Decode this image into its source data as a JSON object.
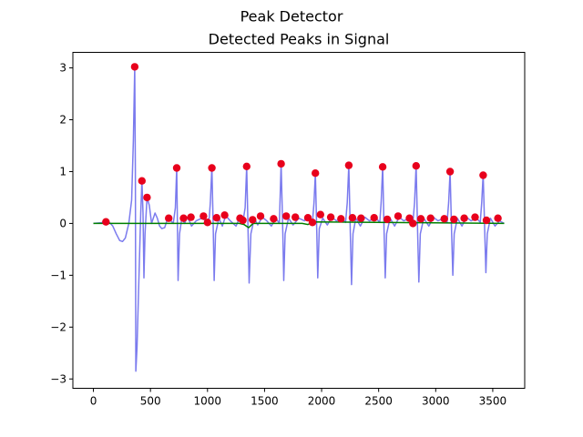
{
  "chart_data": {
    "type": "line",
    "suptitle": "Peak Detector",
    "title": "Detected Peaks in Signal",
    "xlabel": "",
    "ylabel": "",
    "xlim": [
      -180,
      3780
    ],
    "ylim": [
      -3.18,
      3.3
    ],
    "xticks": [
      0,
      500,
      1000,
      1500,
      2000,
      2500,
      3000,
      3500
    ],
    "yticks": [
      -3,
      -2,
      -1,
      0,
      1,
      2,
      3
    ],
    "grid": false,
    "colors": {
      "signal": "#7b7bee",
      "baseline": "#008000",
      "peaks": "#e8001c"
    },
    "signal": [
      [
        0,
        0
      ],
      [
        60,
        0.01
      ],
      [
        100,
        0.03
      ],
      [
        140,
        0.02
      ],
      [
        170,
        -0.05
      ],
      [
        200,
        -0.2
      ],
      [
        230,
        -0.33
      ],
      [
        255,
        -0.35
      ],
      [
        280,
        -0.28
      ],
      [
        310,
        0.0
      ],
      [
        335,
        0.45
      ],
      [
        350,
        1.6
      ],
      [
        362,
        3.02
      ],
      [
        368,
        1.0
      ],
      [
        372,
        -2.85
      ],
      [
        382,
        -2.4
      ],
      [
        400,
        -1.0
      ],
      [
        415,
        0.2
      ],
      [
        425,
        0.82
      ],
      [
        435,
        0.2
      ],
      [
        443,
        -1.05
      ],
      [
        452,
        -0.2
      ],
      [
        470,
        0.5
      ],
      [
        490,
        0.35
      ],
      [
        510,
        0.0
      ],
      [
        540,
        0.2
      ],
      [
        560,
        0.1
      ],
      [
        580,
        -0.05
      ],
      [
        600,
        -0.1
      ],
      [
        625,
        -0.08
      ],
      [
        650,
        0.1
      ],
      [
        680,
        0.05
      ],
      [
        700,
        0.0
      ],
      [
        718,
        0.3
      ],
      [
        730,
        1.08
      ],
      [
        742,
        -1.1
      ],
      [
        755,
        -0.2
      ],
      [
        775,
        0.1
      ],
      [
        800,
        0.0
      ],
      [
        820,
        0.12
      ],
      [
        840,
        0.05
      ],
      [
        860,
        -0.05
      ],
      [
        900,
        0.05
      ],
      [
        950,
        0.1
      ],
      [
        990,
        0.05
      ],
      [
        1015,
        0.1
      ],
      [
        1025,
        0.4
      ],
      [
        1038,
        1.08
      ],
      [
        1050,
        -0.1
      ],
      [
        1058,
        -1.1
      ],
      [
        1070,
        -0.2
      ],
      [
        1100,
        0.1
      ],
      [
        1130,
        -0.05
      ],
      [
        1160,
        0.15
      ],
      [
        1200,
        0.05
      ],
      [
        1250,
        -0.05
      ],
      [
        1280,
        0.1
      ],
      [
        1310,
        0.02
      ],
      [
        1330,
        0.3
      ],
      [
        1343,
        1.1
      ],
      [
        1357,
        -0.3
      ],
      [
        1365,
        -1.15
      ],
      [
        1380,
        -0.2
      ],
      [
        1410,
        0.1
      ],
      [
        1440,
        -0.03
      ],
      [
        1480,
        0.12
      ],
      [
        1520,
        0.05
      ],
      [
        1560,
        -0.05
      ],
      [
        1600,
        0.1
      ],
      [
        1630,
        0.0
      ],
      [
        1645,
        1.15
      ],
      [
        1660,
        -0.2
      ],
      [
        1668,
        -1.1
      ],
      [
        1680,
        -0.2
      ],
      [
        1710,
        0.1
      ],
      [
        1750,
        -0.03
      ],
      [
        1800,
        0.1
      ],
      [
        1850,
        0.05
      ],
      [
        1890,
        0.12
      ],
      [
        1920,
        0.02
      ],
      [
        1933,
        0.4
      ],
      [
        1945,
        0.97
      ],
      [
        1958,
        -0.2
      ],
      [
        1966,
        -1.05
      ],
      [
        1980,
        -0.1
      ],
      [
        2010,
        0.1
      ],
      [
        2050,
        -0.03
      ],
      [
        2090,
        0.12
      ],
      [
        2130,
        0.05
      ],
      [
        2180,
        0.1
      ],
      [
        2210,
        0.02
      ],
      [
        2225,
        0.4
      ],
      [
        2238,
        1.12
      ],
      [
        2252,
        -0.2
      ],
      [
        2262,
        -1.18
      ],
      [
        2275,
        -0.2
      ],
      [
        2300,
        0.1
      ],
      [
        2340,
        -0.05
      ],
      [
        2380,
        0.12
      ],
      [
        2420,
        0.05
      ],
      [
        2470,
        0.12
      ],
      [
        2510,
        0.02
      ],
      [
        2522,
        0.4
      ],
      [
        2535,
        1.1
      ],
      [
        2548,
        -0.2
      ],
      [
        2558,
        -1.05
      ],
      [
        2570,
        -0.2
      ],
      [
        2600,
        0.1
      ],
      [
        2640,
        -0.05
      ],
      [
        2680,
        0.12
      ],
      [
        2720,
        0.05
      ],
      [
        2770,
        0.1
      ],
      [
        2800,
        0.02
      ],
      [
        2815,
        0.4
      ],
      [
        2828,
        1.12
      ],
      [
        2842,
        -0.2
      ],
      [
        2852,
        -1.13
      ],
      [
        2865,
        -0.2
      ],
      [
        2895,
        0.1
      ],
      [
        2940,
        -0.05
      ],
      [
        2980,
        0.12
      ],
      [
        3020,
        0.05
      ],
      [
        3070,
        0.1
      ],
      [
        3100,
        0.02
      ],
      [
        3113,
        0.4
      ],
      [
        3126,
        1.0
      ],
      [
        3140,
        -0.2
      ],
      [
        3150,
        -1.0
      ],
      [
        3162,
        -0.2
      ],
      [
        3190,
        0.1
      ],
      [
        3230,
        -0.05
      ],
      [
        3270,
        0.12
      ],
      [
        3310,
        0.05
      ],
      [
        3360,
        0.1
      ],
      [
        3390,
        0.02
      ],
      [
        3403,
        0.4
      ],
      [
        3416,
        0.95
      ],
      [
        3430,
        -0.2
      ],
      [
        3440,
        -0.95
      ],
      [
        3452,
        -0.2
      ],
      [
        3480,
        0.1
      ],
      [
        3520,
        -0.05
      ],
      [
        3560,
        0.05
      ],
      [
        3600,
        0.0
      ]
    ],
    "baseline": [
      [
        0,
        0
      ],
      [
        1280,
        0
      ],
      [
        1320,
        -0.02
      ],
      [
        1360,
        -0.08
      ],
      [
        1400,
        0.0
      ],
      [
        1830,
        0
      ],
      [
        1880,
        -0.02
      ],
      [
        1930,
        0.03
      ],
      [
        3600,
        0
      ]
    ],
    "peaks": [
      [
        110,
        0.03
      ],
      [
        362,
        3.02
      ],
      [
        425,
        0.82
      ],
      [
        470,
        0.5
      ],
      [
        660,
        0.1
      ],
      [
        730,
        1.07
      ],
      [
        790,
        0.1
      ],
      [
        855,
        0.12
      ],
      [
        965,
        0.14
      ],
      [
        1000,
        0.02
      ],
      [
        1038,
        1.07
      ],
      [
        1080,
        0.11
      ],
      [
        1150,
        0.16
      ],
      [
        1285,
        0.1
      ],
      [
        1310,
        0.06
      ],
      [
        1343,
        1.1
      ],
      [
        1395,
        0.07
      ],
      [
        1465,
        0.14
      ],
      [
        1580,
        0.09
      ],
      [
        1645,
        1.15
      ],
      [
        1690,
        0.14
      ],
      [
        1770,
        0.12
      ],
      [
        1880,
        0.11
      ],
      [
        1920,
        0.02
      ],
      [
        1945,
        0.97
      ],
      [
        1990,
        0.17
      ],
      [
        2080,
        0.12
      ],
      [
        2170,
        0.09
      ],
      [
        2238,
        1.12
      ],
      [
        2270,
        0.11
      ],
      [
        2345,
        0.1
      ],
      [
        2460,
        0.11
      ],
      [
        2535,
        1.09
      ],
      [
        2575,
        0.08
      ],
      [
        2670,
        0.14
      ],
      [
        2770,
        0.1
      ],
      [
        2800,
        0.0
      ],
      [
        2828,
        1.11
      ],
      [
        2870,
        0.09
      ],
      [
        2955,
        0.1
      ],
      [
        3075,
        0.09
      ],
      [
        3126,
        1.0
      ],
      [
        3160,
        0.08
      ],
      [
        3250,
        0.1
      ],
      [
        3345,
        0.12
      ],
      [
        3416,
        0.93
      ],
      [
        3445,
        0.06
      ],
      [
        3545,
        0.1
      ]
    ]
  }
}
